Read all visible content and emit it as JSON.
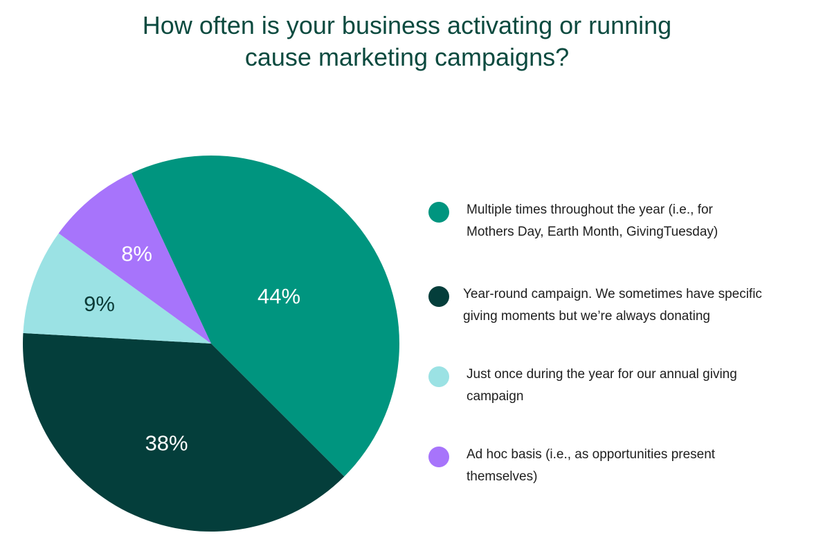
{
  "chart_data": {
    "type": "pie",
    "title": "How often is your business activating or running cause marketing campaigns?",
    "title_lines": [
      "How often is your business activating or running",
      "cause marketing campaigns?"
    ],
    "slices": [
      {
        "label": "Multiple times throughout the year (i.e., for Mothers Day, Earth Month, GivingTuesday)",
        "label_lines": [
          "Multiple times throughout the year (i.e., for",
          "Mothers Day, Earth Month, GivingTuesday)"
        ],
        "value": 44,
        "display": "44%",
        "color": "#00957f",
        "text_color": "#ffffff"
      },
      {
        "label": "Year-round campaign. We sometimes have specific giving moments but we're always donating",
        "label_lines": [
          "Year-round campaign. We sometimes have specific",
          "giving moments but we’re always donating"
        ],
        "value": 38,
        "display": "38%",
        "color": "#043e3b",
        "text_color": "#ffffff"
      },
      {
        "label": "Just once during the year for our annual giving campaign",
        "label_lines": [
          "Just once during the year for our annual giving",
          "campaign"
        ],
        "value": 9,
        "display": "9%",
        "color": "#9be2e4",
        "text_color": "#0b3a36"
      },
      {
        "label": "Ad hoc basis (i.e., as opportunities present themselves)",
        "label_lines": [
          "Ad hoc basis (i.e., as opportunities present",
          "themselves)"
        ],
        "value": 8,
        "display": "8%",
        "color": "#a774fb",
        "text_color": "#ffffff"
      }
    ],
    "legend_position": "right"
  }
}
